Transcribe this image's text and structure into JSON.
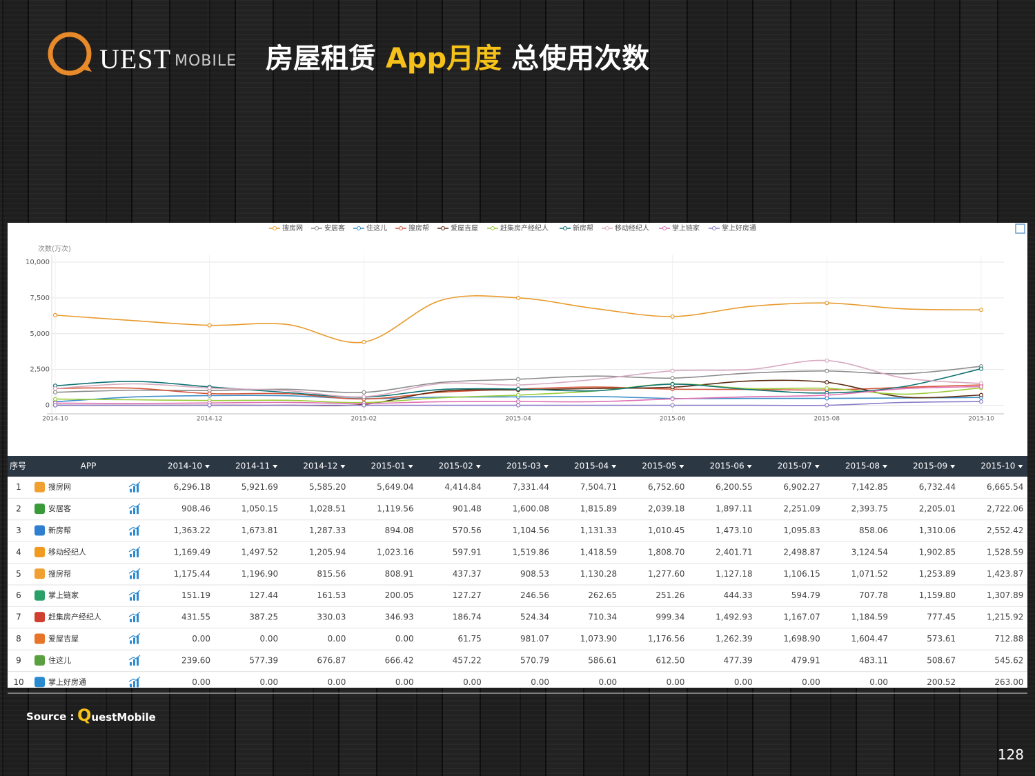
{
  "header": {
    "logo": "UEST",
    "logo_sub": "MOBILE",
    "title_a": "房屋租赁",
    "title_b": "App月度",
    "title_c": "总使用次数"
  },
  "chart_data": {
    "type": "line",
    "y_label": "次数(万次)",
    "categories": [
      "2014-10",
      null,
      "2014-12",
      null,
      "2015-02",
      null,
      "2015-04",
      null,
      "2015-06",
      null,
      "2015-08",
      null,
      "2015-10"
    ],
    "ylim": [
      -600,
      10000
    ],
    "yticks": [
      0,
      {
        "value": 2500,
        "label": "2,500"
      },
      {
        "value": 5000,
        "label": "5,000"
      },
      {
        "value": 7500,
        "label": "7,500"
      },
      {
        "value": 10000,
        "label": "10,000"
      }
    ],
    "grid": true,
    "legend": "top",
    "series": [
      {
        "name": "搜房网",
        "color": "#e89a2c",
        "values": [
          6296.18,
          5921.69,
          5585.2,
          5649.04,
          4414.84,
          7331.44,
          7504.71,
          6752.6,
          6200.55,
          6902.27,
          7142.85,
          6732.44,
          6665.54
        ]
      },
      {
        "name": "安居客",
        "color": "#8c8c8c",
        "values": [
          908.46,
          1050.15,
          1028.51,
          1119.56,
          901.48,
          1600.08,
          1815.89,
          2039.18,
          1897.11,
          2251.09,
          2393.75,
          2205.01,
          2722.06
        ]
      },
      {
        "name": "住这儿",
        "color": "#3b8fc8",
        "values": [
          239.6,
          577.39,
          676.87,
          666.42,
          457.22,
          570.79,
          586.61,
          612.5,
          477.39,
          479.91,
          483.11,
          508.67,
          545.62
        ]
      },
      {
        "name": "搜房帮",
        "color": "#d4553a",
        "values": [
          1175.44,
          1196.9,
          815.56,
          808.91,
          437.37,
          908.53,
          1130.28,
          1277.6,
          1127.18,
          1106.15,
          1071.52,
          1253.89,
          1423.87
        ]
      },
      {
        "name": "爱屋吉屋",
        "color": "#5a2a10",
        "values": [
          0,
          0,
          0,
          0,
          61.75,
          981.07,
          1073.9,
          1176.56,
          1262.39,
          1698.9,
          1604.47,
          573.61,
          712.88
        ]
      },
      {
        "name": "赶集房产经纪人",
        "color": "#9ccc3c",
        "values": [
          431.55,
          387.25,
          330.03,
          346.93,
          186.74,
          524.34,
          710.34,
          999.34,
          1492.93,
          1167.07,
          1184.59,
          777.45,
          1215.92
        ]
      },
      {
        "name": "新房帮",
        "color": "#0d7272",
        "values": [
          1363.22,
          1673.81,
          1287.33,
          894.08,
          570.56,
          1104.56,
          1131.33,
          1010.45,
          1473.1,
          1095.83,
          858.06,
          1310.06,
          2552.42
        ]
      },
      {
        "name": "移动经纪人",
        "color": "#d8aac0",
        "values": [
          1169.49,
          1497.52,
          1205.94,
          1023.16,
          597.91,
          1519.86,
          1418.59,
          1808.7,
          2401.71,
          2498.87,
          3124.54,
          1902.85,
          1528.59
        ]
      },
      {
        "name": "掌上链家",
        "color": "#e070b4",
        "values": [
          151.19,
          127.44,
          161.53,
          200.05,
          127.27,
          246.56,
          262.65,
          251.26,
          444.33,
          594.79,
          707.78,
          1159.8,
          1307.89
        ]
      },
      {
        "name": "掌上好房通",
        "color": "#8a7cc8",
        "values": [
          0,
          0,
          0,
          0,
          0,
          0,
          0,
          0,
          0,
          0,
          0,
          200.52,
          263.0
        ]
      }
    ]
  },
  "table": {
    "columns": [
      "序号",
      "APP",
      "2014-10",
      "2014-11",
      "2014-12",
      "2015-01",
      "2015-02",
      "2015-03",
      "2015-04",
      "2015-05",
      "2015-06",
      "2015-07",
      "2015-08",
      "2015-09",
      "2015-10"
    ],
    "rows": [
      {
        "index": "1",
        "name": "搜房网",
        "cells": [
          "6,296.18",
          "5,921.69",
          "5,585.20",
          "5,649.04",
          "4,414.84",
          "7,331.44",
          "7,504.71",
          "6,752.60",
          "6,200.55",
          "6,902.27",
          "7,142.85",
          "6,732.44",
          "6,665.54"
        ]
      },
      {
        "index": "2",
        "name": "安居客",
        "cells": [
          "908.46",
          "1,050.15",
          "1,028.51",
          "1,119.56",
          "901.48",
          "1,600.08",
          "1,815.89",
          "2,039.18",
          "1,897.11",
          "2,251.09",
          "2,393.75",
          "2,205.01",
          "2,722.06"
        ]
      },
      {
        "index": "3",
        "name": "新房帮",
        "cells": [
          "1,363.22",
          "1,673.81",
          "1,287.33",
          "894.08",
          "570.56",
          "1,104.56",
          "1,131.33",
          "1,010.45",
          "1,473.10",
          "1,095.83",
          "858.06",
          "1,310.06",
          "2,552.42"
        ]
      },
      {
        "index": "4",
        "name": "移动经纪人",
        "cells": [
          "1,169.49",
          "1,497.52",
          "1,205.94",
          "1,023.16",
          "597.91",
          "1,519.86",
          "1,418.59",
          "1,808.70",
          "2,401.71",
          "2,498.87",
          "3,124.54",
          "1,902.85",
          "1,528.59"
        ]
      },
      {
        "index": "5",
        "name": "搜房帮",
        "cells": [
          "1,175.44",
          "1,196.90",
          "815.56",
          "808.91",
          "437.37",
          "908.53",
          "1,130.28",
          "1,277.60",
          "1,127.18",
          "1,106.15",
          "1,071.52",
          "1,253.89",
          "1,423.87"
        ]
      },
      {
        "index": "6",
        "name": "掌上链家",
        "cells": [
          "151.19",
          "127.44",
          "161.53",
          "200.05",
          "127.27",
          "246.56",
          "262.65",
          "251.26",
          "444.33",
          "594.79",
          "707.78",
          "1,159.80",
          "1,307.89"
        ]
      },
      {
        "index": "7",
        "name": "赶集房产经纪人",
        "cells": [
          "431.55",
          "387.25",
          "330.03",
          "346.93",
          "186.74",
          "524.34",
          "710.34",
          "999.34",
          "1,492.93",
          "1,167.07",
          "1,184.59",
          "777.45",
          "1,215.92"
        ]
      },
      {
        "index": "8",
        "name": "爱屋吉屋",
        "cells": [
          "0.00",
          "0.00",
          "0.00",
          "0.00",
          "61.75",
          "981.07",
          "1,073.90",
          "1,176.56",
          "1,262.39",
          "1,698.90",
          "1,604.47",
          "573.61",
          "712.88"
        ]
      },
      {
        "index": "9",
        "name": "住这儿",
        "cells": [
          "239.60",
          "577.39",
          "676.87",
          "666.42",
          "457.22",
          "570.79",
          "586.61",
          "612.50",
          "477.39",
          "479.91",
          "483.11",
          "508.67",
          "545.62"
        ]
      },
      {
        "index": "10",
        "name": "掌上好房通",
        "cells": [
          "0.00",
          "0.00",
          "0.00",
          "0.00",
          "0.00",
          "0.00",
          "0.00",
          "0.00",
          "0.00",
          "0.00",
          "0.00",
          "200.52",
          "263.00"
        ]
      }
    ]
  },
  "footer": {
    "source_label": "Source :",
    "source": "QuestMobile",
    "page": "128"
  }
}
